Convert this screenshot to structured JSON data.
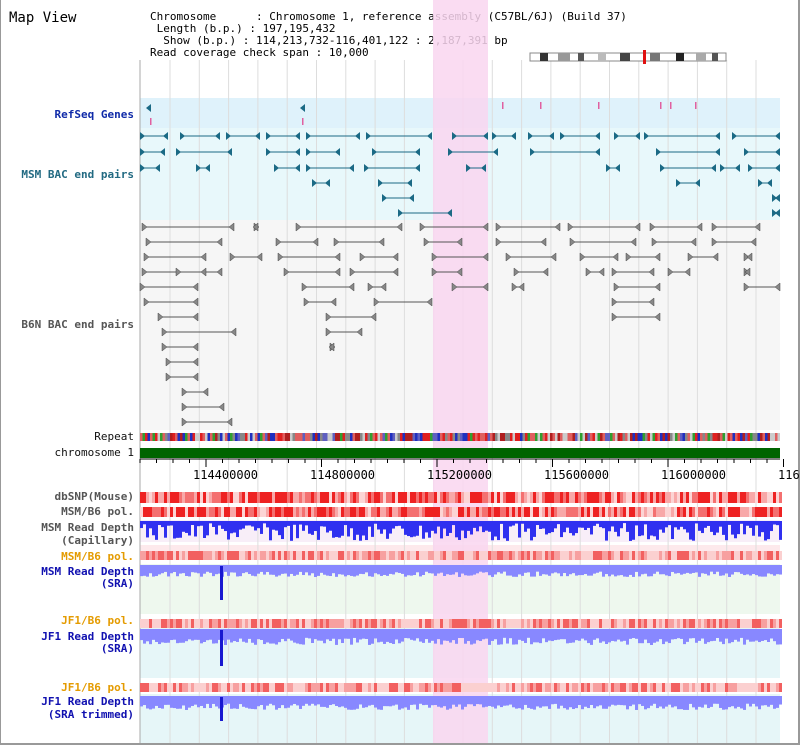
{
  "map_title": "Map View",
  "header": {
    "chromosome_label": "Chromosome",
    "chromosome_value": "Chromosome 1, reference assembly (C57BL/6J) (Build 37)",
    "length_label": "Length (b.p.)",
    "length_value": "197,195,432",
    "show_label": "Show (b.p.)",
    "show_value": "114,213,732-116,401,122 : 2,187,391 bp",
    "coverage_label": "Read coverage check span",
    "coverage_value": "10,000"
  },
  "tracks": {
    "refseq": "RefSeq Genes",
    "msm_bac": "MSM BAC end pairs",
    "b6n_bac": "B6N BAC end pairs",
    "repeat": "Repeat",
    "chromosome": "chromosome 1",
    "dbsnp": "dbSNP(Mouse)",
    "msm_b6_pol_1": "MSM/B6 pol.",
    "msm_read_depth_cap_1": "MSM Read Depth",
    "msm_read_depth_cap_2": "(Capillary)",
    "msm_b6_pol_2": "MSM/B6 pol.",
    "msm_read_depth_sra_1": "MSM Read Depth",
    "msm_read_depth_sra_2": "(SRA)",
    "jf1_b6_pol_1": "JF1/B6 pol.",
    "jf1_read_depth_1": "JF1 Read Depth",
    "jf1_read_depth_2": "(SRA)",
    "jf1_b6_pol_2": "JF1/B6 pol.",
    "jf1_trim_1": "JF1 Read Depth",
    "jf1_trim_2": "(SRA trimmed)"
  },
  "axis": {
    "ticks": [
      "114400000",
      "114800000",
      "115200000",
      "115600000",
      "116000000",
      "116"
    ]
  },
  "colors": {
    "highlight": "#f9d6f0",
    "refseq_bg": "#dff2fb",
    "msm_bg": "#e8f8fb",
    "teal_feature": "#1b6a85",
    "gray_feature": "#555555",
    "chrom_bar": "#006400",
    "snp_red": "#ee2222",
    "depth_blue": "#3030f0",
    "depth_light": "#8888ff"
  }
}
